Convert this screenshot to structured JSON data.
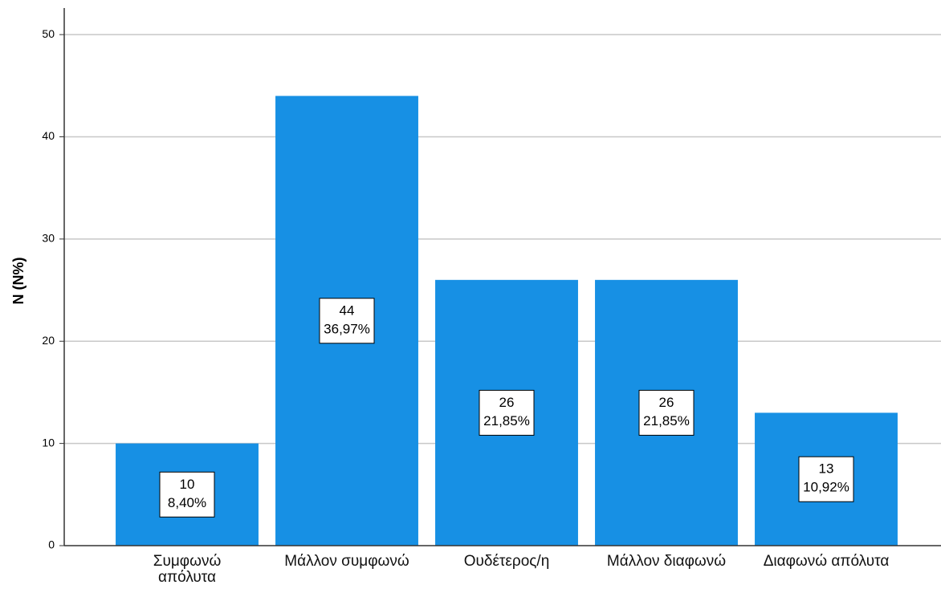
{
  "chart_data": {
    "type": "bar",
    "y_label": "N (N%)",
    "categories": [
      "Συμφωνώ\nαπόλυτα",
      "Μάλλον συμφωνώ",
      "Ουδέτερος/η",
      "Μάλλον διαφωνώ",
      "Διαφωνώ απόλυτα"
    ],
    "values": [
      10,
      44,
      26,
      26,
      13
    ],
    "percentages": [
      8.4,
      36.97,
      21.85,
      21.85,
      10.92
    ],
    "percentage_labels": [
      "8,40%",
      "36,97%",
      "21,85%",
      "21,85%",
      "10,92%"
    ],
    "color": "#1790e4",
    "ylim": [
      0,
      52.6
    ],
    "yticks": [
      0,
      10,
      20,
      30,
      40,
      50
    ],
    "grid": true
  }
}
